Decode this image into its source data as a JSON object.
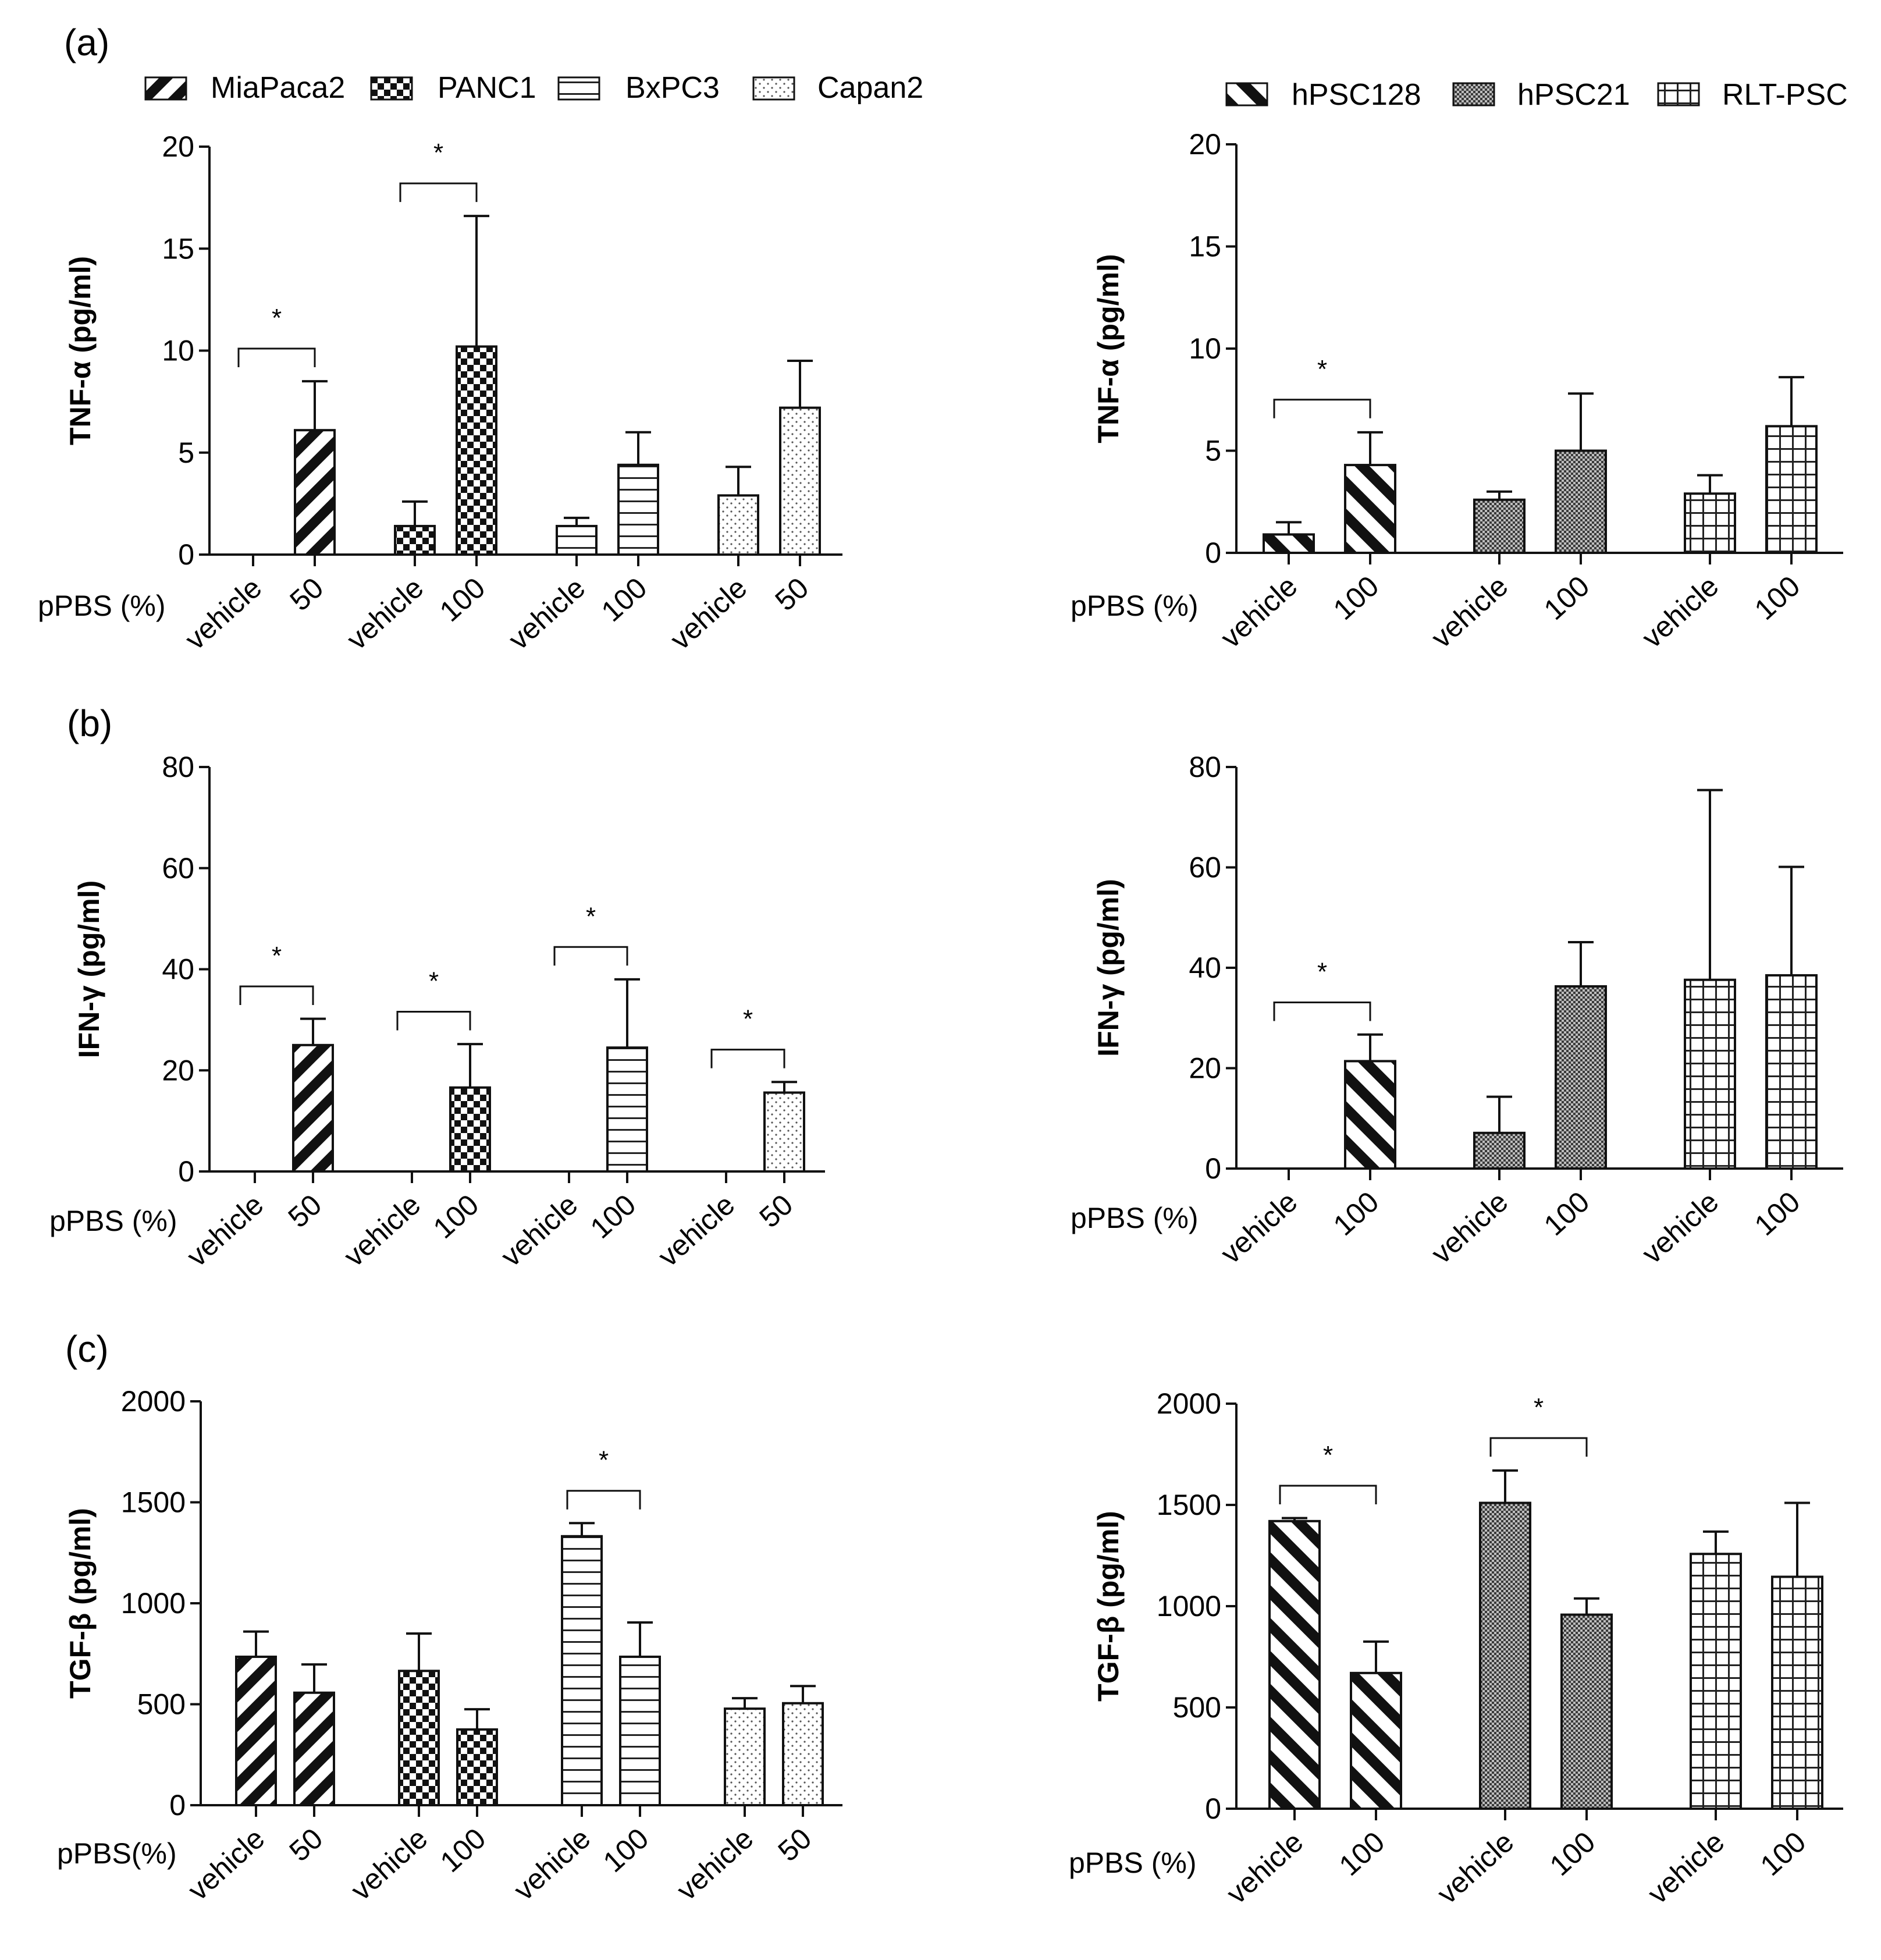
{
  "figure": {
    "panel_labels": [
      "(a)",
      "(b)",
      "(c)"
    ],
    "legends": {
      "cancer": [
        {
          "name": "MiaPaca2",
          "pattern": "diag"
        },
        {
          "name": "PANC1",
          "pattern": "checker"
        },
        {
          "name": "BxPC3",
          "pattern": "hlines"
        },
        {
          "name": "Capan2",
          "pattern": "dots"
        }
      ],
      "psc": [
        {
          "name": "hPSC128",
          "pattern": "backdiag"
        },
        {
          "name": "hPSC21",
          "pattern": "fine"
        },
        {
          "name": "RLT-PSC",
          "pattern": "grid"
        }
      ]
    }
  },
  "chart_data": [
    {
      "id": "a-left",
      "type": "bar",
      "panel": "(a)",
      "ylabel": "TNF-α (pg/ml)",
      "ylim": [
        0,
        20
      ],
      "yticks": [
        0,
        5,
        10,
        15,
        20
      ],
      "xprefix": "pPBS (%)",
      "groups": [
        {
          "name": "MiaPaca2",
          "pattern": "diag",
          "categories": [
            "vehicle",
            "50"
          ],
          "values": [
            0,
            6.1
          ],
          "errors": [
            0,
            2.4
          ],
          "sig": "*"
        },
        {
          "name": "PANC1",
          "pattern": "checker",
          "categories": [
            "vehicle",
            "100"
          ],
          "values": [
            1.4,
            10.2
          ],
          "errors": [
            1.2,
            6.4
          ],
          "sig": "*"
        },
        {
          "name": "BxPC3",
          "pattern": "hlines",
          "categories": [
            "vehicle",
            "100"
          ],
          "values": [
            1.4,
            4.4
          ],
          "errors": [
            0.4,
            1.6
          ],
          "sig": ""
        },
        {
          "name": "Capan2",
          "pattern": "dots",
          "categories": [
            "vehicle",
            "50"
          ],
          "values": [
            2.9,
            7.2
          ],
          "errors": [
            1.4,
            2.3
          ],
          "sig": ""
        }
      ]
    },
    {
      "id": "a-right",
      "type": "bar",
      "panel": "(a)",
      "ylabel": "TNF-α (pg/ml)",
      "ylim": [
        0,
        20
      ],
      "yticks": [
        0,
        5,
        10,
        15,
        20
      ],
      "xprefix": "pPBS (%)",
      "groups": [
        {
          "name": "hPSC128",
          "pattern": "backdiag",
          "categories": [
            "vehicle",
            "100"
          ],
          "values": [
            0.9,
            4.3
          ],
          "errors": [
            0.6,
            1.6
          ],
          "sig": "*"
        },
        {
          "name": "hPSC21",
          "pattern": "fine",
          "categories": [
            "vehicle",
            "100"
          ],
          "values": [
            2.6,
            5.0
          ],
          "errors": [
            0.4,
            2.8
          ],
          "sig": ""
        },
        {
          "name": "RLT-PSC",
          "pattern": "grid",
          "categories": [
            "vehicle",
            "100"
          ],
          "values": [
            2.9,
            6.2
          ],
          "errors": [
            0.9,
            2.4
          ],
          "sig": ""
        }
      ]
    },
    {
      "id": "b-left",
      "type": "bar",
      "panel": "(b)",
      "ylabel": "IFN-γ (pg/ml)",
      "ylim": [
        0,
        80
      ],
      "yticks": [
        0,
        20,
        40,
        60,
        80
      ],
      "xprefix": "pPBS (%)",
      "groups": [
        {
          "name": "MiaPaca2",
          "pattern": "diag",
          "categories": [
            "vehicle",
            "50"
          ],
          "values": [
            0,
            25
          ],
          "errors": [
            0,
            5.2
          ],
          "sig": "*"
        },
        {
          "name": "PANC1",
          "pattern": "checker",
          "categories": [
            "vehicle",
            "100"
          ],
          "values": [
            0,
            16.6
          ],
          "errors": [
            0,
            8.6
          ],
          "sig": "*"
        },
        {
          "name": "BxPC3",
          "pattern": "hlines",
          "categories": [
            "vehicle",
            "100"
          ],
          "values": [
            0,
            24.5
          ],
          "errors": [
            0,
            13.5
          ],
          "sig": "*"
        },
        {
          "name": "Capan2",
          "pattern": "dots",
          "categories": [
            "vehicle",
            "50"
          ],
          "values": [
            0,
            15.6
          ],
          "errors": [
            0,
            2.1
          ],
          "sig": "*"
        }
      ]
    },
    {
      "id": "b-right",
      "type": "bar",
      "panel": "(b)",
      "ylabel": "IFN-γ (pg/ml)",
      "ylim": [
        0,
        80
      ],
      "yticks": [
        0,
        20,
        40,
        60,
        80
      ],
      "xprefix": "pPBS (%)",
      "groups": [
        {
          "name": "hPSC128",
          "pattern": "backdiag",
          "categories": [
            "vehicle",
            "100"
          ],
          "values": [
            0,
            21.4
          ],
          "errors": [
            0,
            5.3
          ],
          "sig": "*"
        },
        {
          "name": "hPSC21",
          "pattern": "fine",
          "categories": [
            "vehicle",
            "100"
          ],
          "values": [
            7.1,
            36.3
          ],
          "errors": [
            7.2,
            8.8
          ],
          "sig": ""
        },
        {
          "name": "RLT-PSC",
          "pattern": "grid",
          "categories": [
            "vehicle",
            "100"
          ],
          "values": [
            37.6,
            38.5
          ],
          "errors": [
            37.8,
            21.6
          ],
          "sig": ""
        }
      ]
    },
    {
      "id": "c-left",
      "type": "bar",
      "panel": "(c)",
      "ylabel": "TGF-β (pg/ml)",
      "ylim": [
        0,
        2000
      ],
      "yticks": [
        0,
        500,
        1000,
        1500,
        2000
      ],
      "xprefix": "pPBS(%)",
      "groups": [
        {
          "name": "MiaPaca2",
          "pattern": "diag",
          "categories": [
            "vehicle",
            "50"
          ],
          "values": [
            735,
            557
          ],
          "errors": [
            125,
            140
          ],
          "sig": ""
        },
        {
          "name": "PANC1",
          "pattern": "checker",
          "categories": [
            "vehicle",
            "100"
          ],
          "values": [
            665,
            375
          ],
          "errors": [
            185,
            100
          ],
          "sig": ""
        },
        {
          "name": "BxPC3",
          "pattern": "hlines",
          "categories": [
            "vehicle",
            "100"
          ],
          "values": [
            1332,
            735
          ],
          "errors": [
            65,
            170
          ],
          "sig": "*"
        },
        {
          "name": "Capan2",
          "pattern": "dots",
          "categories": [
            "vehicle",
            "50"
          ],
          "values": [
            478,
            505
          ],
          "errors": [
            52,
            85
          ],
          "sig": ""
        }
      ]
    },
    {
      "id": "c-right",
      "type": "bar",
      "panel": "(c)",
      "ylabel": "TGF-β (pg/ml)",
      "ylim": [
        0,
        2000
      ],
      "yticks": [
        0,
        500,
        1000,
        1500,
        2000
      ],
      "xprefix": "pPBS (%)",
      "groups": [
        {
          "name": "hPSC128",
          "pattern": "backdiag",
          "categories": [
            "vehicle",
            "100"
          ],
          "values": [
            1420,
            670
          ],
          "errors": [
            15,
            155
          ],
          "sig": "*"
        },
        {
          "name": "hPSC21",
          "pattern": "fine",
          "categories": [
            "vehicle",
            "100"
          ],
          "values": [
            1510,
            958
          ],
          "errors": [
            160,
            80
          ],
          "sig": "*"
        },
        {
          "name": "RLT-PSC",
          "pattern": "grid",
          "categories": [
            "vehicle",
            "100"
          ],
          "values": [
            1258,
            1145
          ],
          "errors": [
            110,
            365
          ],
          "sig": ""
        }
      ]
    }
  ]
}
